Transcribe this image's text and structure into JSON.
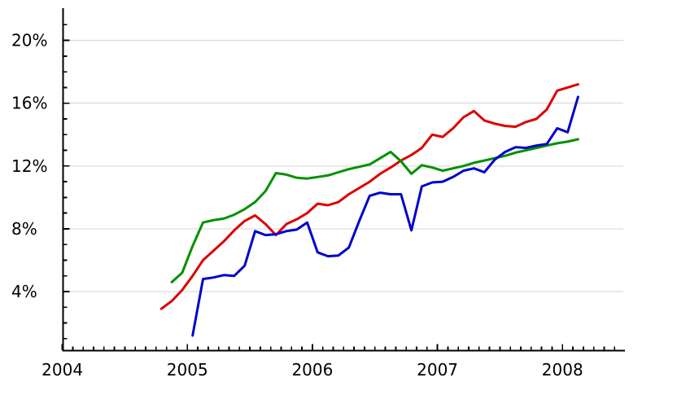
{
  "chart_data": {
    "type": "line",
    "title": "",
    "legend": "none",
    "grid": "horizontal-major-only",
    "gridline_color": "#d4d4d4",
    "axis_color": "#000000",
    "background_color": "#ffffff",
    "x_axis": {
      "unit": "year",
      "tick_labels": [
        "2004",
        "2005",
        "2006",
        "2007",
        "2008"
      ],
      "minor_tick_unit": "month",
      "minor_tick_count": 54,
      "range": [
        "2004-01",
        "2008-06"
      ]
    },
    "y_axis": {
      "unit": "percent",
      "tick_labels": [
        "4%",
        "8%",
        "12%",
        "16%",
        "20%"
      ],
      "tick_values": [
        4,
        8,
        12,
        16,
        20
      ],
      "minor_tick_step": 1,
      "minor_tick_min": 1,
      "minor_tick_max": 21,
      "range_percent": [
        0.2,
        22
      ]
    },
    "series": [
      {
        "name": "red-series",
        "color": "#dd0000",
        "interval": "monthly",
        "start": "2004-10",
        "end": "2008-02",
        "values": [
          2.9,
          3.4,
          4.1,
          5.0,
          6.0,
          6.6,
          7.2,
          7.9,
          8.5,
          8.85,
          8.3,
          7.6,
          8.3,
          8.6,
          9.0,
          9.6,
          9.5,
          9.7,
          10.2,
          10.6,
          11.0,
          11.5,
          11.9,
          12.35,
          12.7,
          13.15,
          14.0,
          13.85,
          14.4,
          15.1,
          15.5,
          14.9,
          14.7,
          14.55,
          14.5,
          14.8,
          15.0,
          15.6,
          16.8,
          17.0,
          17.2
        ]
      },
      {
        "name": "green-series",
        "color": "#009100",
        "interval": "monthly",
        "start": "2004-11",
        "end": "2008-02",
        "values": [
          4.6,
          5.2,
          6.9,
          8.4,
          8.55,
          8.65,
          8.9,
          9.25,
          9.7,
          10.4,
          11.55,
          11.45,
          11.25,
          11.2,
          11.3,
          11.4,
          11.6,
          11.8,
          11.95,
          12.1,
          12.5,
          12.9,
          12.3,
          11.5,
          12.05,
          11.9,
          11.7,
          11.85,
          12.0,
          12.2,
          12.35,
          12.5,
          12.65,
          12.85,
          13.0,
          13.15,
          13.3,
          13.45,
          13.55,
          13.7
        ]
      },
      {
        "name": "blue-series",
        "color": "#0000cd",
        "interval": "monthly",
        "start": "2005-01",
        "end": "2008-02",
        "values": [
          1.2,
          4.8,
          4.9,
          5.05,
          5.0,
          5.65,
          7.85,
          7.6,
          7.65,
          7.85,
          7.95,
          8.4,
          6.5,
          6.25,
          6.3,
          6.8,
          8.5,
          10.1,
          10.3,
          10.2,
          10.2,
          7.9,
          10.7,
          10.95,
          11.0,
          11.3,
          11.7,
          11.85,
          11.6,
          12.4,
          12.9,
          13.2,
          13.15,
          13.3,
          13.4,
          14.4,
          14.15,
          16.4
        ]
      }
    ]
  }
}
